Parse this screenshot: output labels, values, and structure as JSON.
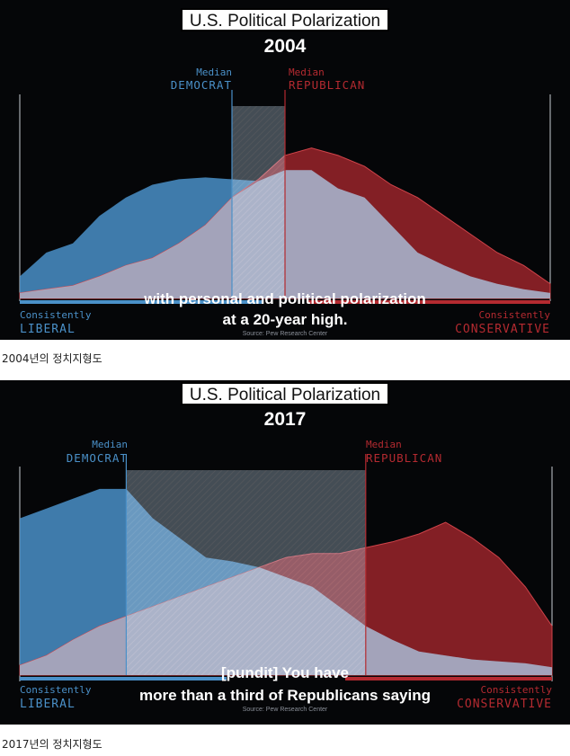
{
  "colors": {
    "background": "#050608",
    "democrat": "#4a90c8",
    "republican": "#b42a30",
    "overlap": "#a8c4dc"
  },
  "chart_data": [
    {
      "type": "area",
      "title": "U.S. Political Polarization",
      "subtitle": "2004",
      "xlabel_left": [
        "Consistently",
        "LIBERAL"
      ],
      "xlabel_right": [
        "Consistently",
        "CONSERVATIVE"
      ],
      "x": [
        0,
        1,
        2,
        3,
        4,
        5,
        6,
        7,
        8,
        9,
        10,
        11,
        12,
        13,
        14,
        15,
        16,
        17,
        18,
        19,
        20
      ],
      "xlim": [
        0,
        20
      ],
      "ylim": [
        0,
        1
      ],
      "series": [
        {
          "name": "DEMOCRAT",
          "color": "#4a90c8",
          "values": [
            0.12,
            0.25,
            0.3,
            0.45,
            0.55,
            0.62,
            0.65,
            0.66,
            0.65,
            0.64,
            0.7,
            0.7,
            0.6,
            0.55,
            0.4,
            0.25,
            0.18,
            0.12,
            0.08,
            0.05,
            0.03
          ]
        },
        {
          "name": "REPUBLICAN",
          "color": "#b42a30",
          "values": [
            0.03,
            0.05,
            0.07,
            0.12,
            0.18,
            0.22,
            0.3,
            0.4,
            0.55,
            0.65,
            0.78,
            0.82,
            0.78,
            0.72,
            0.62,
            0.55,
            0.45,
            0.35,
            0.25,
            0.18,
            0.08
          ]
        }
      ],
      "medians": [
        {
          "label_top": "Median",
          "label": "DEMOCRAT",
          "x": 8
        },
        {
          "label_top": "Median",
          "label": "REPUBLICAN",
          "x": 10
        }
      ],
      "subtitle_text": [
        "with personal and political polarization",
        "at a 20-year high."
      ],
      "source": "Source: Pew Research Center"
    },
    {
      "type": "area",
      "title": "U.S. Political Polarization",
      "subtitle": "2017",
      "xlabel_left": [
        "Consistently",
        "LIBERAL"
      ],
      "xlabel_right": [
        "Consistently",
        "CONSERVATIVE"
      ],
      "x": [
        0,
        1,
        2,
        3,
        4,
        5,
        6,
        7,
        8,
        9,
        10,
        11,
        12,
        13,
        14,
        15,
        16,
        17,
        18,
        19,
        20
      ],
      "xlim": [
        0,
        20
      ],
      "ylim": [
        0,
        1
      ],
      "series": [
        {
          "name": "DEMOCRAT",
          "color": "#4a90c8",
          "values": [
            0.8,
            0.85,
            0.9,
            0.95,
            0.95,
            0.8,
            0.7,
            0.6,
            0.58,
            0.55,
            0.5,
            0.45,
            0.35,
            0.25,
            0.18,
            0.12,
            0.1,
            0.08,
            0.07,
            0.06,
            0.04
          ]
        },
        {
          "name": "REPUBLICAN",
          "color": "#b42a30",
          "values": [
            0.05,
            0.1,
            0.18,
            0.25,
            0.3,
            0.35,
            0.4,
            0.45,
            0.5,
            0.55,
            0.6,
            0.62,
            0.62,
            0.65,
            0.68,
            0.72,
            0.78,
            0.7,
            0.6,
            0.45,
            0.25
          ]
        }
      ],
      "medians": [
        {
          "label_top": "Median",
          "label": "DEMOCRAT",
          "x": 4
        },
        {
          "label_top": "Median",
          "label": "REPUBLICAN",
          "x": 13
        }
      ],
      "subtitle_text": [
        "[pundit] You have",
        "more than a third of Republicans saying"
      ],
      "source": "Source: Pew Research Center"
    }
  ],
  "captions": [
    "2004년의 정치지형도",
    "2017년의 정치지형도"
  ]
}
